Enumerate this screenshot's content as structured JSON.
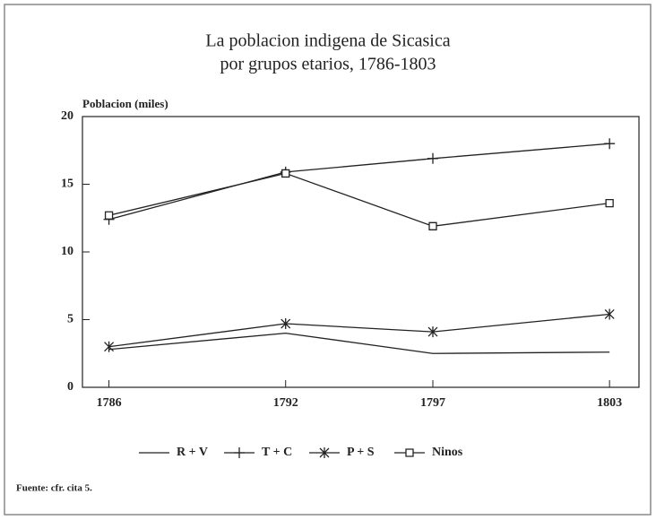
{
  "chart_data": {
    "type": "line",
    "title": [
      "La poblacion indigena de Sicasica",
      "por grupos etarios, 1786-1803"
    ],
    "y_label": "Poblacion (miles)",
    "source": "Fuente: cfr. cita 5.",
    "x": [
      1786,
      1792,
      1797,
      1803
    ],
    "xlim": [
      1785.1,
      1804
    ],
    "xticks": [
      1786,
      1792,
      1797,
      1803
    ],
    "ylim": [
      0,
      20
    ],
    "yticks": [
      0,
      5,
      10,
      15,
      20
    ],
    "series": [
      {
        "name": "R + V",
        "color": "#222",
        "marker": "none",
        "values": [
          2.8,
          4.0,
          2.5,
          2.6
        ]
      },
      {
        "name": "T + C",
        "color": "#222",
        "marker": "plus",
        "values": [
          12.4,
          15.9,
          16.9,
          18.0
        ]
      },
      {
        "name": "P + S",
        "color": "#222",
        "marker": "asterisk",
        "values": [
          3.0,
          4.7,
          4.1,
          5.4
        ]
      },
      {
        "name": "Ninos",
        "color": "#222",
        "marker": "square",
        "values": [
          12.7,
          15.8,
          11.9,
          13.6
        ]
      }
    ]
  }
}
